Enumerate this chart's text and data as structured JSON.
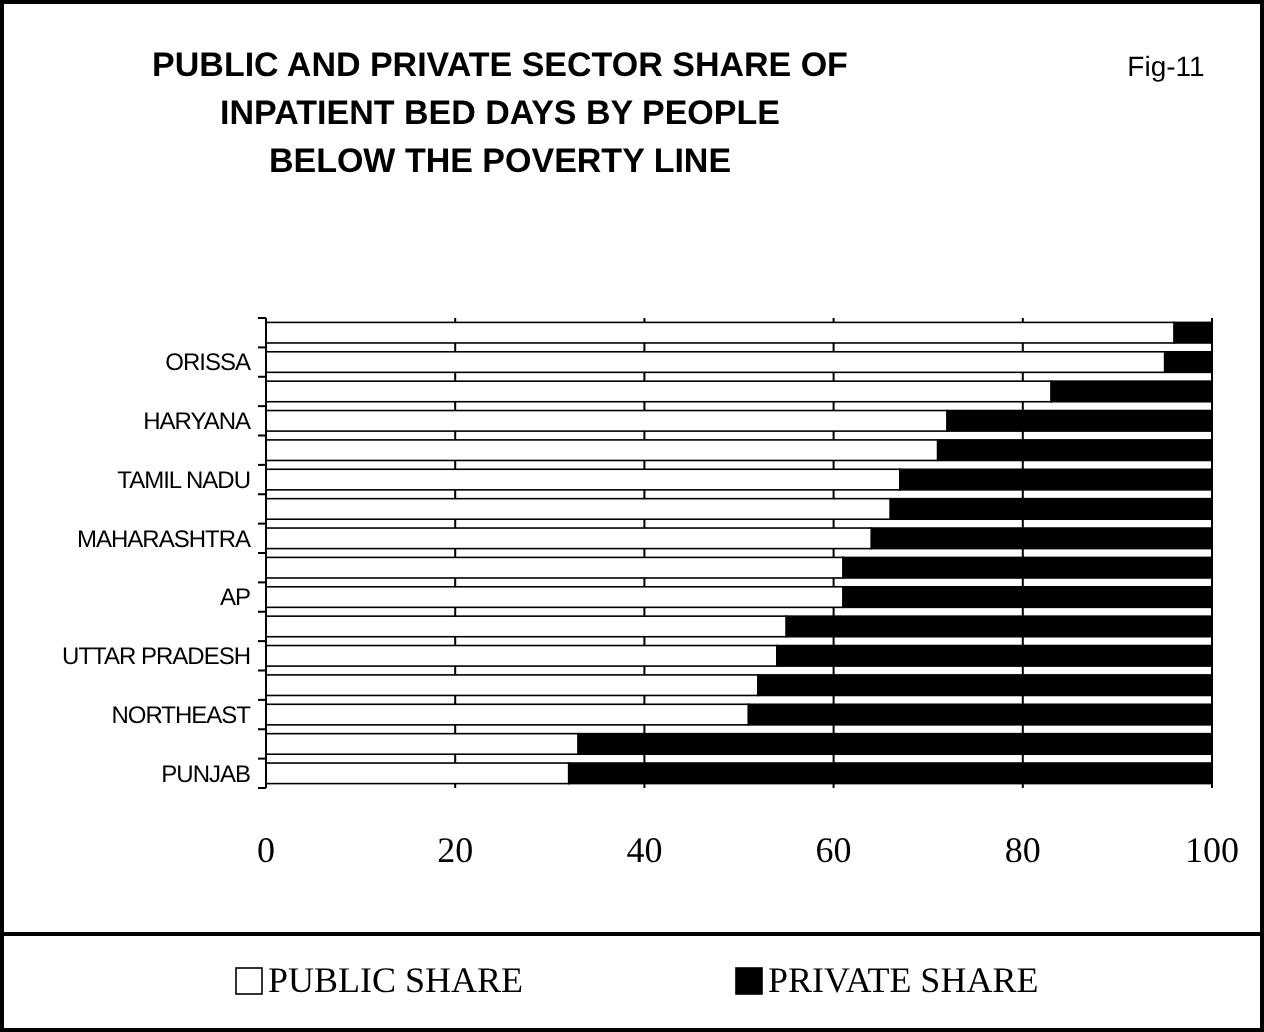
{
  "chart_data": {
    "type": "bar",
    "orientation": "horizontal",
    "stacked": true,
    "title": "PUBLIC AND PRIVATE SECTOR SHARE OF\nINPATIENT BED DAYS BY PEOPLE\nBELOW THE POVERTY LINE",
    "annotations": [
      "Fig-11"
    ],
    "categories": [
      null,
      "ORISSA",
      null,
      "HARYANA",
      null,
      "TAMIL NADU",
      null,
      "MAHARASHTRA",
      null,
      "AP",
      null,
      "UTTAR PRADESH",
      null,
      "NORTHEAST",
      null,
      "PUNJAB"
    ],
    "series": [
      {
        "name": "PUBLIC SHARE",
        "color": "#ffffff",
        "values": [
          96,
          95,
          83,
          72,
          71,
          67,
          66,
          64,
          61,
          61,
          55,
          54,
          52,
          51,
          33,
          32
        ]
      },
      {
        "name": "PRIVATE SHARE",
        "color": "#000000",
        "values": [
          4,
          5,
          17,
          28,
          29,
          33,
          34,
          36,
          39,
          39,
          45,
          46,
          48,
          49,
          67,
          68
        ]
      }
    ],
    "xlim": [
      0,
      100
    ],
    "xticks": [
      0,
      20,
      40,
      60,
      80,
      100
    ],
    "grid": "x",
    "legend": "bottom"
  }
}
